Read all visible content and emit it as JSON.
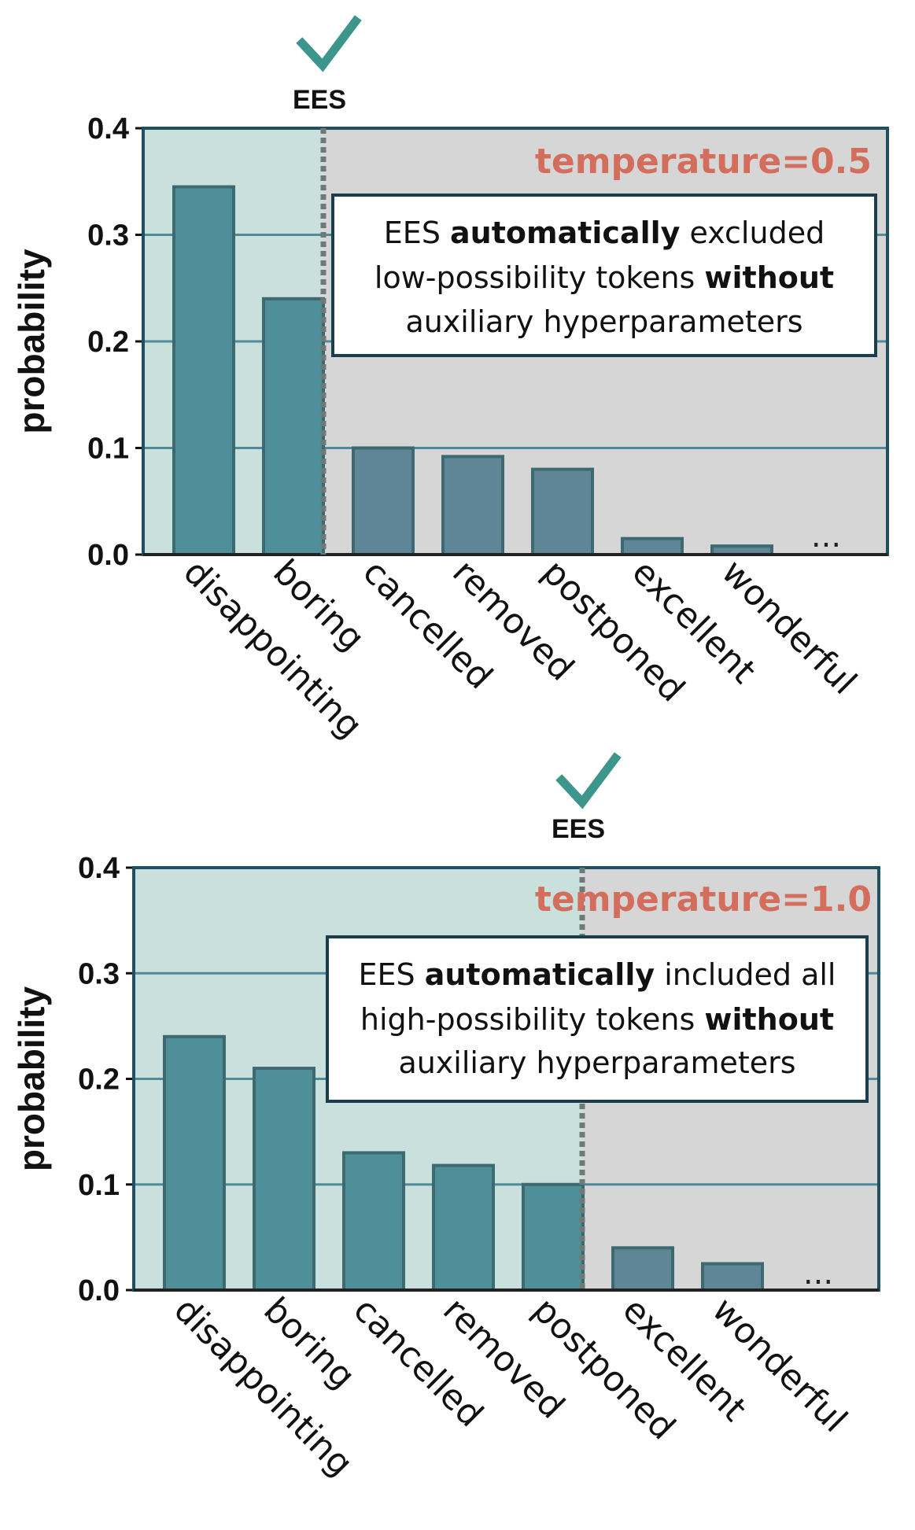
{
  "colors": {
    "included_region": "#c9e0dc",
    "excluded_region": "#d6d6d6",
    "included_bar": "#4e8f99",
    "excluded_bar": "#5f8696",
    "bar_edge": "#3c6a70",
    "grid": "#4f8a9a",
    "frame": "#1f4f63",
    "temperature_text": "#d46e5c",
    "check": "#3d968b"
  },
  "chart_data": [
    {
      "type": "bar",
      "title": "temperature=0.5",
      "ylabel": "probability",
      "ylim": [
        0,
        0.4
      ],
      "yticks": [
        "0.0",
        "0.1",
        "0.2",
        "0.3",
        "0.4"
      ],
      "categories": [
        "disappointing",
        "boring",
        "cancelled",
        "removed",
        "postponed",
        "excellent",
        "wonderful"
      ],
      "values": [
        0.345,
        0.24,
        0.1,
        0.092,
        0.08,
        0.015,
        0.008
      ],
      "included_count": 2,
      "cutoff_label": "EES",
      "ellipsis": "...",
      "annotation_lines": [
        [
          {
            "text": "EES ",
            "bold": false
          },
          {
            "text": "automatically",
            "bold": true
          },
          {
            "text": " excluded",
            "bold": false
          }
        ],
        [
          {
            "text": "low-possibility tokens ",
            "bold": false
          },
          {
            "text": "without",
            "bold": true
          }
        ],
        [
          {
            "text": "auxiliary hyperparameters",
            "bold": false
          }
        ]
      ]
    },
    {
      "type": "bar",
      "title": "temperature=1.0",
      "ylabel": "probability",
      "ylim": [
        0,
        0.4
      ],
      "yticks": [
        "0.0",
        "0.1",
        "0.2",
        "0.3",
        "0.4"
      ],
      "categories": [
        "disappointing",
        "boring",
        "cancelled",
        "removed",
        "postponed",
        "excellent",
        "wonderful"
      ],
      "values": [
        0.24,
        0.21,
        0.13,
        0.118,
        0.1,
        0.04,
        0.025
      ],
      "included_count": 5,
      "cutoff_label": "EES",
      "ellipsis": "...",
      "annotation_lines": [
        [
          {
            "text": "EES ",
            "bold": false
          },
          {
            "text": "automatically",
            "bold": true
          },
          {
            "text": " included all",
            "bold": false
          }
        ],
        [
          {
            "text": "high-possibility tokens ",
            "bold": false
          },
          {
            "text": "without",
            "bold": true
          }
        ],
        [
          {
            "text": "auxiliary hyperparameters",
            "bold": false
          }
        ]
      ]
    }
  ]
}
